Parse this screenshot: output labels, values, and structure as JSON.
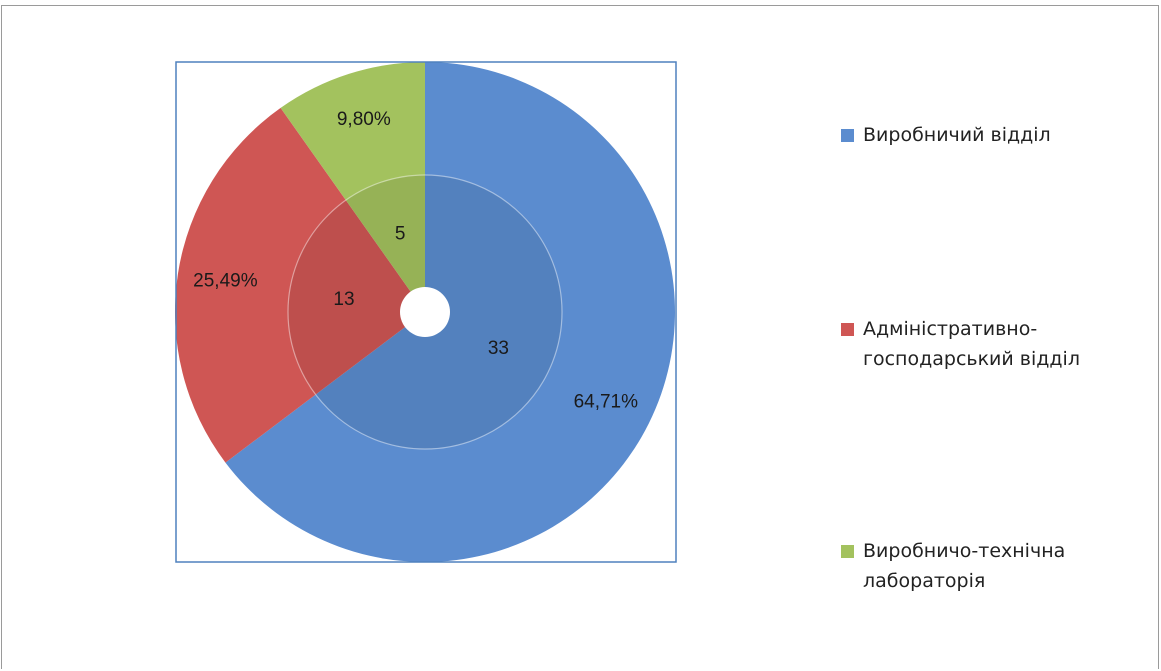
{
  "colors": {
    "blue": "#5B8CCF",
    "red": "#CF5654",
    "green": "#A3C25E",
    "plot_border": "#4F81BD"
  },
  "chart_data": {
    "type": "pie",
    "subtype": "nested-donut",
    "categories": [
      "Виробничий відділ",
      "Адміністративно-господарський відділ",
      "Виробничо-технічна лабораторія"
    ],
    "legend_labels": [
      "Виробничий відділ",
      "Адміністративно-\nгосподарський відділ",
      "Виробничо-технічна\nлабораторія"
    ],
    "series": [
      {
        "ring": "inner",
        "values": [
          33,
          13,
          5
        ],
        "labels": [
          "33",
          "13",
          "5"
        ]
      },
      {
        "ring": "outer",
        "values": [
          64.71,
          25.49,
          9.8
        ],
        "labels": [
          "64,71%",
          "25,49%",
          "9,80%"
        ]
      }
    ],
    "legend_position": "right"
  }
}
